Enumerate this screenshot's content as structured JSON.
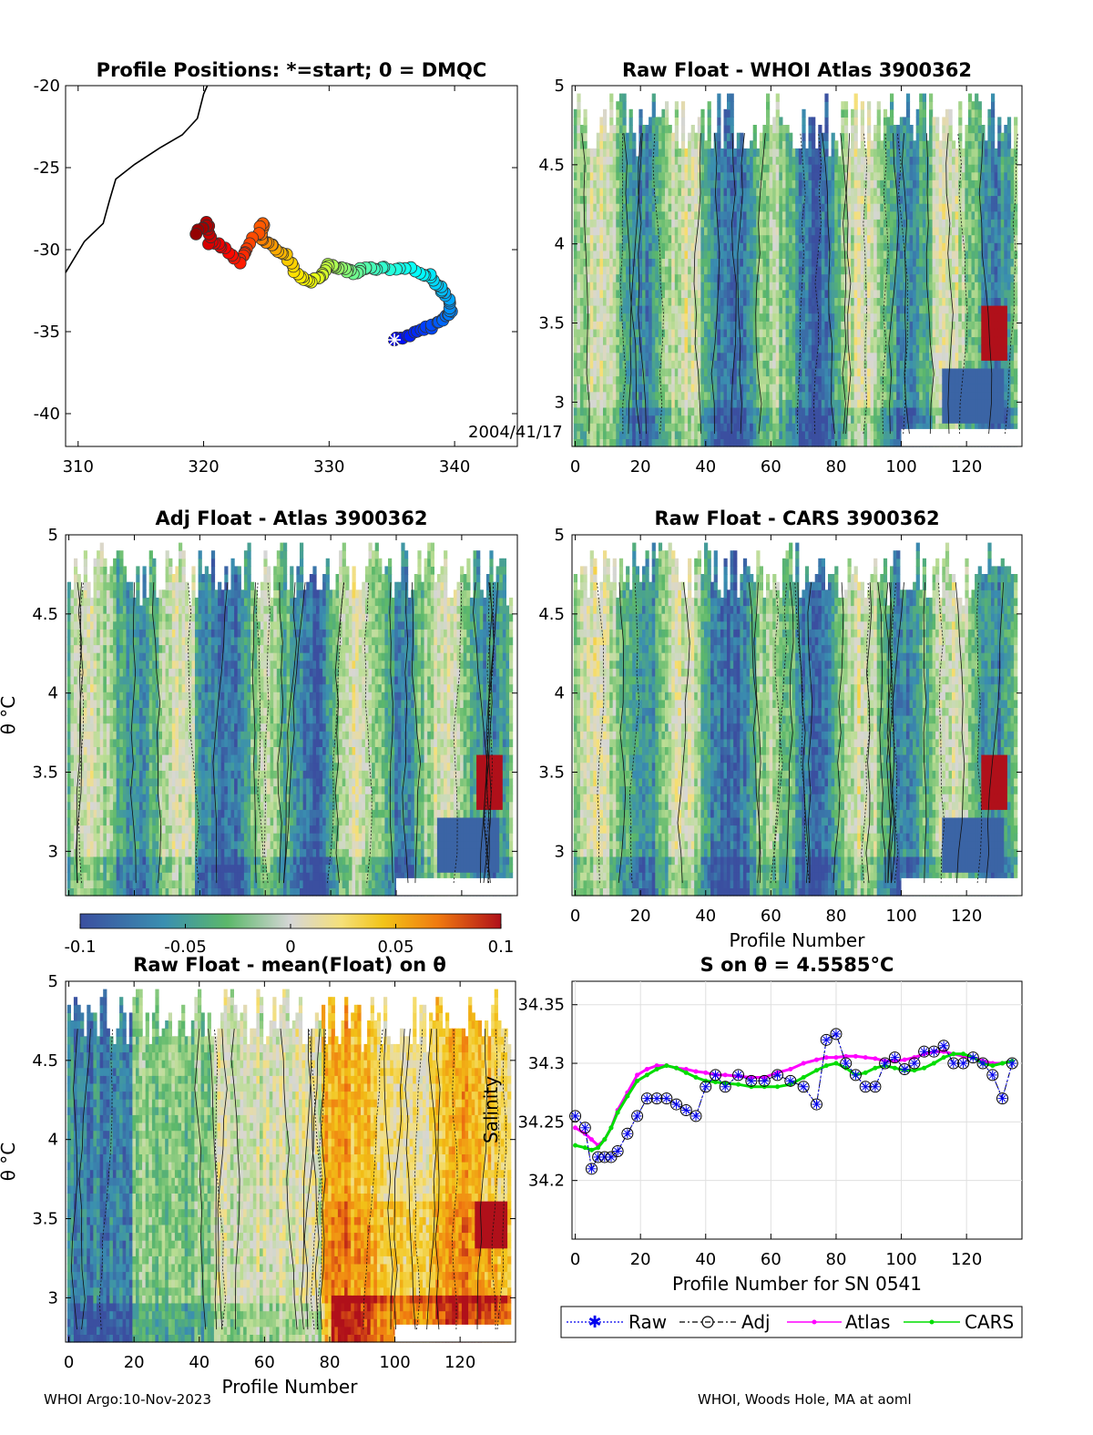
{
  "footer": {
    "left": "WHOI Argo:10-Nov-2023",
    "right": "WHOI, Woods Hole, MA at aoml"
  },
  "colors": {
    "blue": "#3b56a0",
    "green": "#55b464",
    "grey": "#d6d6d6",
    "yellow": "#f2d21e",
    "orange": "#f08c10",
    "red": "#b0101a",
    "atlas": "#ff00ff",
    "cars": "#00dd00",
    "raw": "#0000ee"
  },
  "chart_data": [
    {
      "id": "map",
      "type": "scatter",
      "title": "Profile Positions: *=start; 0 = DMQC",
      "xlim": [
        309,
        345
      ],
      "ylim": [
        -42,
        -20
      ],
      "xticks": [
        "310",
        "320",
        "330",
        "340"
      ],
      "yticks": [
        "-20",
        "-25",
        "-30",
        "-35",
        "-40"
      ],
      "annotation": "2004/41/17",
      "coastline": [
        [
          309,
          -31.4
        ],
        [
          310.5,
          -29.5
        ],
        [
          312,
          -28.4
        ],
        [
          312.5,
          -27
        ],
        [
          313,
          -25.7
        ],
        [
          314.5,
          -24.8
        ],
        [
          316.5,
          -23.8
        ],
        [
          318.3,
          -23
        ],
        [
          319.5,
          -22
        ],
        [
          320,
          -20.5
        ],
        [
          320.3,
          -20
        ]
      ],
      "track_lon": [
        335.2,
        336.5,
        337.8,
        339,
        339.8,
        339.5,
        338.8,
        338,
        336.5,
        334.5,
        333,
        332,
        331,
        330,
        329.5,
        328.5,
        327.5,
        326.5,
        325.5,
        324.5,
        324.8,
        323.5,
        322.8,
        321.5,
        320.5,
        320.3,
        319.5
      ],
      "track_lat": [
        -35.5,
        -35.2,
        -34.8,
        -34.3,
        -33.8,
        -33.0,
        -32.3,
        -31.6,
        -31.2,
        -31.1,
        -31.1,
        -31.4,
        -31.2,
        -31.0,
        -31.5,
        -32.0,
        -31.5,
        -30.3,
        -29.8,
        -29.3,
        -28.4,
        -29.9,
        -30.8,
        -29.8,
        -29.6,
        -28.3,
        -29.0
      ],
      "start": [
        335.2,
        -35.5
      ]
    },
    {
      "id": "raw-atlas",
      "type": "heatmap",
      "title": "Raw Float - WHOI Atlas  3900362",
      "xlim": [
        -1,
        137
      ],
      "ylim": [
        2.72,
        5.0
      ],
      "xticks": [
        "0",
        "20",
        "40",
        "60",
        "80",
        "100",
        "120"
      ],
      "yticks": [
        "5",
        "4.5",
        "4",
        "3.5",
        "3",
        ""
      ]
    },
    {
      "id": "adj-atlas",
      "type": "heatmap",
      "title": "Adj Float - Atlas  3900362",
      "ylabel": "θ °C",
      "xlim": [
        -1,
        137
      ],
      "ylim": [
        2.72,
        5.0
      ],
      "xticks": [],
      "yticks": [
        "5",
        "4.5",
        "4",
        "3.5",
        "3",
        ""
      ]
    },
    {
      "id": "raw-cars",
      "type": "heatmap",
      "title": "Raw Float - CARS  3900362",
      "xlabel": "Profile Number",
      "xlim": [
        -1,
        137
      ],
      "ylim": [
        2.72,
        5.0
      ],
      "xticks": [
        "0",
        "20",
        "40",
        "60",
        "80",
        "100",
        "120"
      ],
      "yticks": [
        "5",
        "4.5",
        "4",
        "3.5",
        "3",
        ""
      ]
    },
    {
      "id": "raw-mean",
      "type": "heatmap",
      "title": "Raw Float - mean(Float) on θ",
      "xlabel": "Profile Number",
      "ylabel": "θ °C",
      "xlim": [
        -1,
        137
      ],
      "ylim": [
        2.72,
        5.0
      ],
      "xticks": [
        "0",
        "20",
        "40",
        "60",
        "80",
        "100",
        "120"
      ],
      "yticks": [
        "5",
        "4.5",
        "4",
        "3.5",
        "3",
        ""
      ]
    },
    {
      "id": "colorbar",
      "type": "colorbar",
      "range": [
        -0.1,
        0.1
      ],
      "ticks": [
        "-0.1",
        "-0.05",
        "0",
        "0.05",
        "0.1"
      ]
    },
    {
      "id": "salinity",
      "type": "line",
      "title": "S on θ = 4.5585°C",
      "xlabel": "Profile Number for SN 0541",
      "ylabel": "Salinity",
      "xlim": [
        -1,
        137
      ],
      "ylim": [
        34.15,
        34.37
      ],
      "xticks": [
        "0",
        "20",
        "40",
        "60",
        "80",
        "100",
        "120"
      ],
      "yticks": [
        "34.35",
        "34.3",
        "34.25",
        "34.2"
      ],
      "x": [
        0,
        3,
        5,
        7,
        9,
        11,
        13,
        16,
        19,
        22,
        25,
        28,
        31,
        34,
        37,
        40,
        43,
        46,
        50,
        54,
        58,
        62,
        66,
        70,
        74,
        77,
        80,
        83,
        86,
        89,
        92,
        95,
        98,
        101,
        104,
        107,
        110,
        113,
        116,
        119,
        122,
        125,
        128,
        131,
        134
      ],
      "series": [
        {
          "name": "Raw",
          "values": [
            34.255,
            34.245,
            34.21,
            34.22,
            34.22,
            34.22,
            34.225,
            34.24,
            34.255,
            34.27,
            34.27,
            34.27,
            34.265,
            34.26,
            34.255,
            34.28,
            34.29,
            34.28,
            34.29,
            34.285,
            34.285,
            34.29,
            34.285,
            34.28,
            34.265,
            34.32,
            34.325,
            34.3,
            34.29,
            34.28,
            34.28,
            34.3,
            34.305,
            34.295,
            34.3,
            34.31,
            34.31,
            34.315,
            34.3,
            34.3,
            34.305,
            34.3,
            34.29,
            34.27,
            34.3
          ]
        },
        {
          "name": "Adj",
          "values": [
            34.255,
            34.245,
            34.21,
            34.22,
            34.22,
            34.22,
            34.225,
            34.24,
            34.255,
            34.27,
            34.27,
            34.27,
            34.265,
            34.26,
            34.255,
            34.28,
            34.29,
            34.28,
            34.29,
            34.285,
            34.285,
            34.29,
            34.285,
            34.28,
            34.265,
            34.32,
            34.325,
            34.3,
            34.29,
            34.28,
            34.28,
            34.3,
            34.305,
            34.295,
            34.3,
            34.31,
            34.31,
            34.315,
            34.3,
            34.3,
            34.305,
            34.3,
            34.29,
            34.27,
            34.3
          ]
        },
        {
          "name": "Atlas",
          "values": [
            34.245,
            34.24,
            34.235,
            34.23,
            34.235,
            34.245,
            34.26,
            34.275,
            34.29,
            34.295,
            34.298,
            34.298,
            34.296,
            34.295,
            34.293,
            34.292,
            34.29,
            34.29,
            34.289,
            34.288,
            34.288,
            34.292,
            34.295,
            34.3,
            34.303,
            34.305,
            34.305,
            34.306,
            34.306,
            34.305,
            34.304,
            34.302,
            34.302,
            34.303,
            34.305,
            34.308,
            34.31,
            34.31,
            34.308,
            34.306,
            34.305,
            34.302,
            34.3,
            34.3,
            34.302
          ]
        },
        {
          "name": "CARS",
          "values": [
            34.23,
            34.228,
            34.226,
            34.228,
            34.235,
            34.245,
            34.258,
            34.272,
            34.285,
            34.29,
            34.295,
            34.298,
            34.296,
            34.292,
            34.288,
            34.285,
            34.284,
            34.283,
            34.282,
            34.28,
            34.28,
            34.28,
            34.282,
            34.288,
            34.294,
            34.298,
            34.3,
            34.296,
            34.29,
            34.292,
            34.296,
            34.298,
            34.296,
            34.294,
            34.294,
            34.296,
            34.3,
            34.305,
            34.308,
            34.308,
            34.305,
            34.3,
            34.298,
            34.3,
            34.302
          ]
        }
      ],
      "legend": [
        "Raw",
        "Adj",
        "Atlas",
        "CARS"
      ]
    }
  ]
}
